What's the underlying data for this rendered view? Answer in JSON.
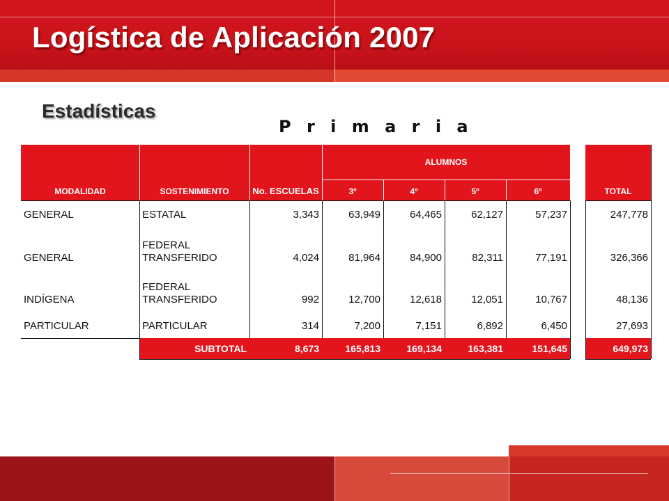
{
  "slide": {
    "title": "Logística de Aplicación 2007",
    "subtitle": "Estadísticas",
    "level": "P r i m a r i a"
  },
  "table": {
    "headers": {
      "modalidad": "MODALIDAD",
      "sostenimiento": "SOSTENIMIENTO",
      "escuelas": "No. ESCUELAS",
      "alumnos": "ALUMNOS",
      "g3": "3º",
      "g4": "4º",
      "g5": "5º",
      "g6": "6º",
      "total": "TOTAL"
    },
    "rows": [
      {
        "modalidad": "GENERAL",
        "sostenimiento": "ESTATAL",
        "escuelas": "3,343",
        "g3": "63,949",
        "g4": "64,465",
        "g5": "62,127",
        "g6": "57,237",
        "total": "247,778"
      },
      {
        "modalidad": "GENERAL",
        "sostenimiento": "FEDERAL TRANSFERIDO",
        "escuelas": "4,024",
        "g3": "81,964",
        "g4": "84,900",
        "g5": "82,311",
        "g6": "77,191",
        "total": "326,366"
      },
      {
        "modalidad": "INDÍGENA",
        "sostenimiento": "FEDERAL TRANSFERIDO",
        "escuelas": "992",
        "g3": "12,700",
        "g4": "12,618",
        "g5": "12,051",
        "g6": "10,767",
        "total": "48,136"
      },
      {
        "modalidad": "PARTICULAR",
        "sostenimiento": "PARTICULAR",
        "escuelas": "314",
        "g3": "7,200",
        "g4": "7,151",
        "g5": "6,892",
        "g6": "6,450",
        "total": "27,693"
      }
    ],
    "subtotal": {
      "label": "SUBTOTAL",
      "escuelas": "8,673",
      "g3": "165,813",
      "g4": "169,134",
      "g5": "163,381",
      "g6": "151,645",
      "total": "649,973"
    }
  },
  "colors": {
    "brand_red": "#e2141c",
    "header_red": "#c8121a"
  }
}
